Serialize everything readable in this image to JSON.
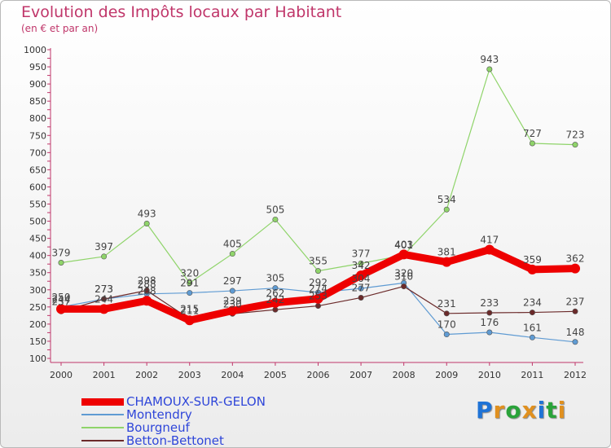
{
  "title": "Evolution des Impôts locaux par Habitant",
  "subtitle": "(en € et par an)",
  "logo_text": "Proxiti",
  "colors": {
    "title": "#c0366a",
    "axis": "#c0366a",
    "legend_text": "#2f46d9",
    "logo": [
      "#1f73d6",
      "#e0901f",
      "#2aa33a",
      "#e0901f",
      "#1f73d6",
      "#2aa33a",
      "#e0901f"
    ]
  },
  "chart_data": {
    "type": "line",
    "x": [
      "2000",
      "2001",
      "2002",
      "2003",
      "2004",
      "2005",
      "2006",
      "2007",
      "2008",
      "2009",
      "2010",
      "2011",
      "2012"
    ],
    "y_ticks": [
      "100",
      "150",
      "200",
      "250",
      "300",
      "350",
      "400",
      "450",
      "500",
      "550",
      "600",
      "650",
      "700",
      "750",
      "800",
      "850",
      "900",
      "950",
      "1000"
    ],
    "ylim": [
      100,
      1000
    ],
    "grid": false,
    "legend_position": "bottom-left",
    "series": [
      {
        "name": "CHAMOUX-SUR-GELON",
        "color": "#ee0000",
        "width": 9,
        "marker": false,
        "values": [
          244,
          244,
          268,
          211,
          239,
          262,
          274,
          342,
          403,
          381,
          417,
          359,
          362
        ],
        "labels": [
          "244",
          "244",
          "268",
          "211",
          "239",
          "262",
          "274",
          "342",
          "403",
          "381",
          "417",
          "359",
          "362"
        ]
      },
      {
        "name": "Montendry",
        "color": "#5f9bd3",
        "width": 1.2,
        "marker": true,
        "values": [
          250,
          273,
          288,
          291,
          297,
          305,
          292,
          304,
          320,
          170,
          176,
          161,
          148
        ],
        "labels": [
          "250",
          "273",
          "288",
          "291",
          "297",
          "305",
          "292",
          "304",
          "320",
          "170",
          "176",
          "161",
          "148"
        ]
      },
      {
        "name": "Bourgneuf",
        "color": "#8fd46a",
        "width": 1.2,
        "marker": true,
        "values": [
          379,
          397,
          493,
          320,
          405,
          505,
          355,
          377,
          401,
          534,
          943,
          727,
          723
        ],
        "labels": [
          "379",
          "397",
          "493",
          "320",
          "405",
          "505",
          "355",
          "377",
          "401",
          "534",
          "943",
          "727",
          "723"
        ]
      },
      {
        "name": "Betton-Bettonet",
        "color": "#6b2a2a",
        "width": 1.2,
        "marker": true,
        "values": [
          237,
          273,
          298,
          215,
          230,
          242,
          253,
          277,
          310,
          231,
          233,
          234,
          237
        ],
        "labels": [
          "237",
          "273",
          "298",
          "215",
          "230",
          "242",
          "253",
          "277",
          "310",
          "231",
          "233",
          "234",
          "237"
        ]
      }
    ]
  }
}
